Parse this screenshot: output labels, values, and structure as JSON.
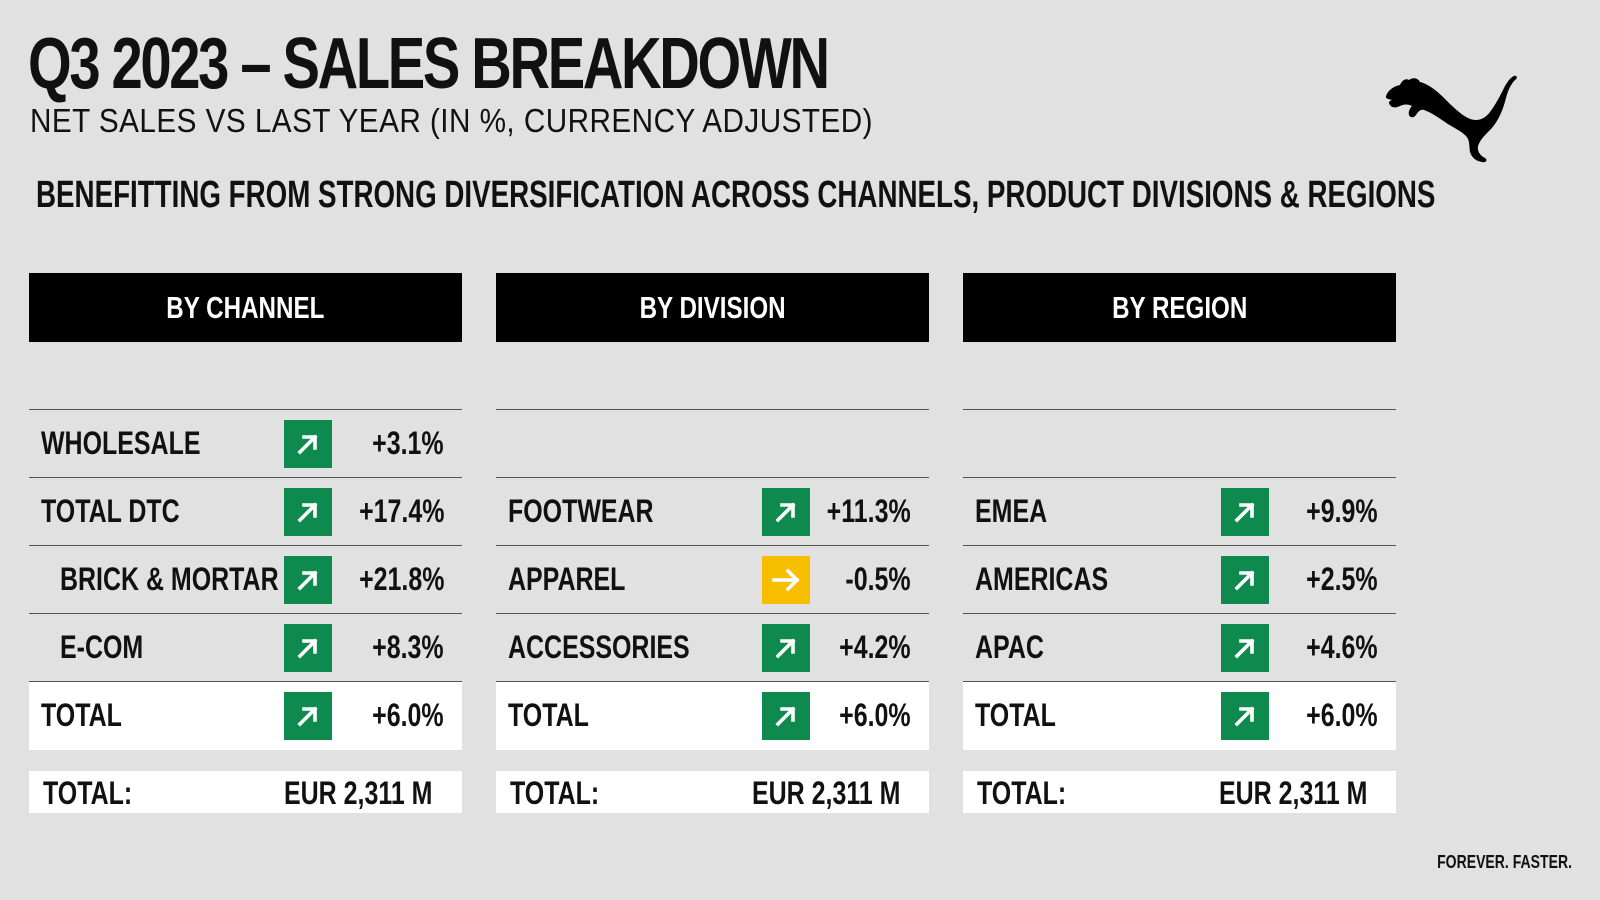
{
  "header": {
    "title": "Q3 2023 – SALES BREAKDOWN",
    "subtitle": "NET SALES VS LAST YEAR (IN %, CURRENCY ADJUSTED)",
    "headline": "BENEFITTING FROM STRONG DIVERSIFICATION ACROSS CHANNELS, PRODUCT DIVISIONS & REGIONS"
  },
  "brand": {
    "logo": "puma-cat-logo",
    "tagline": "FOREVER. FASTER."
  },
  "colors": {
    "up": "#0f8a4f",
    "flat": "#f7be00",
    "header_bg": "#000000",
    "page_bg": "#e1e1e1"
  },
  "icons": {
    "up": "arrow-up-right-icon",
    "flat": "arrow-right-icon"
  },
  "panels": {
    "channel": {
      "title": "BY CHANNEL",
      "rows": [
        {
          "label": "WHOLESALE",
          "value": "+3.1%",
          "trend": "up"
        },
        {
          "label": "TOTAL DTC",
          "value": "+17.4%",
          "trend": "up"
        },
        {
          "label": "BRICK & MORTAR",
          "value": "+21.8%",
          "trend": "up"
        },
        {
          "label": "E-COM",
          "value": "+8.3%",
          "trend": "up"
        }
      ],
      "total": {
        "label": "TOTAL",
        "value": "+6.0%",
        "trend": "up"
      },
      "sum": {
        "label": "TOTAL:",
        "value": "EUR 2,311 M"
      }
    },
    "division": {
      "title": "BY DIVISION",
      "rows": [
        {
          "label": "FOOTWEAR",
          "value": "+11.3%",
          "trend": "up"
        },
        {
          "label": "APPAREL",
          "value": "-0.5%",
          "trend": "flat"
        },
        {
          "label": "ACCESSORIES",
          "value": "+4.2%",
          "trend": "up"
        }
      ],
      "total": {
        "label": "TOTAL",
        "value": "+6.0%",
        "trend": "up"
      },
      "sum": {
        "label": "TOTAL:",
        "value": "EUR 2,311 M"
      }
    },
    "region": {
      "title": "BY REGION",
      "rows": [
        {
          "label": "EMEA",
          "value": "+9.9%",
          "trend": "up"
        },
        {
          "label": "AMERICAS",
          "value": "+2.5%",
          "trend": "up"
        },
        {
          "label": "APAC",
          "value": "+4.6%",
          "trend": "up"
        }
      ],
      "total": {
        "label": "TOTAL",
        "value": "+6.0%",
        "trend": "up"
      },
      "sum": {
        "label": "TOTAL:",
        "value": "EUR 2,311 M"
      }
    }
  }
}
